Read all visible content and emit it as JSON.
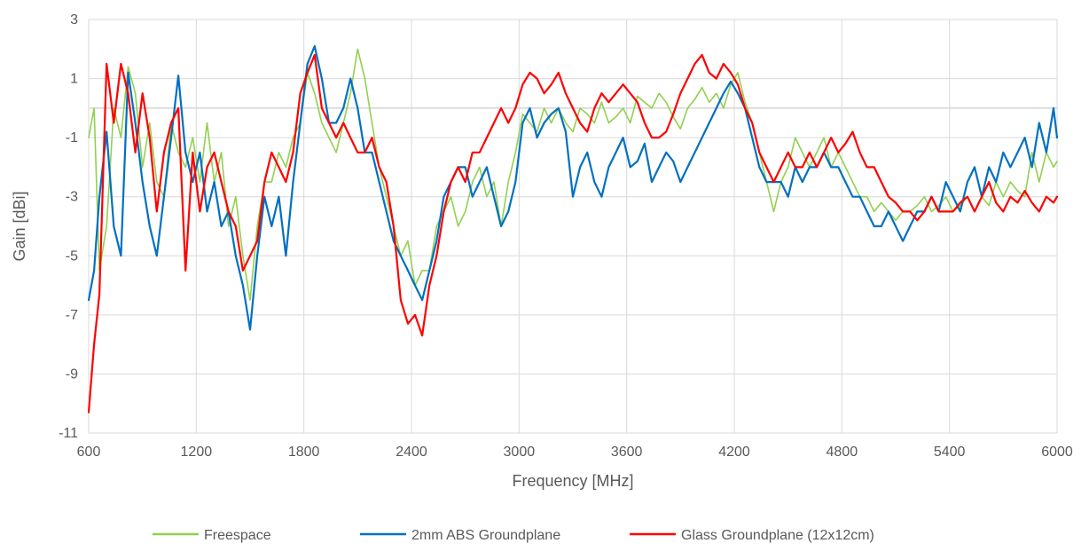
{
  "chart_data": {
    "type": "line",
    "title": "",
    "xlabel": "Frequency [MHz]",
    "ylabel": "Gain [dBi]",
    "xlim": [
      600,
      6000
    ],
    "ylim": [
      -11,
      3
    ],
    "xticks": [
      600,
      1200,
      1800,
      2400,
      3000,
      3600,
      4200,
      4800,
      5400,
      6000
    ],
    "yticks": [
      -11,
      -9,
      -7,
      -5,
      -3,
      -1,
      1,
      3
    ],
    "xtick_labels": [
      "600",
      "1200",
      "1800",
      "2400",
      "3000",
      "3600",
      "4200",
      "4800",
      "5400",
      "6000"
    ],
    "ytick_labels": [
      "-11",
      "-9",
      "-7",
      "-5",
      "-3",
      "-1",
      "1",
      "3"
    ],
    "grid": true,
    "legend": "bottom",
    "x": [
      600,
      630,
      660,
      700,
      740,
      780,
      820,
      860,
      900,
      940,
      980,
      1020,
      1060,
      1100,
      1140,
      1180,
      1220,
      1260,
      1300,
      1340,
      1380,
      1420,
      1460,
      1500,
      1540,
      1580,
      1620,
      1660,
      1700,
      1740,
      1780,
      1820,
      1860,
      1900,
      1940,
      1980,
      2020,
      2060,
      2100,
      2140,
      2180,
      2220,
      2260,
      2300,
      2340,
      2380,
      2420,
      2460,
      2500,
      2540,
      2580,
      2620,
      2660,
      2700,
      2740,
      2780,
      2820,
      2860,
      2900,
      2940,
      2980,
      3020,
      3060,
      3100,
      3140,
      3180,
      3220,
      3260,
      3300,
      3340,
      3380,
      3420,
      3460,
      3500,
      3540,
      3580,
      3620,
      3660,
      3700,
      3740,
      3780,
      3820,
      3860,
      3900,
      3940,
      3980,
      4020,
      4060,
      4100,
      4140,
      4180,
      4220,
      4260,
      4300,
      4340,
      4380,
      4420,
      4460,
      4500,
      4540,
      4580,
      4620,
      4660,
      4700,
      4740,
      4780,
      4820,
      4860,
      4900,
      4940,
      4980,
      5020,
      5060,
      5100,
      5140,
      5180,
      5220,
      5260,
      5300,
      5340,
      5380,
      5420,
      5460,
      5500,
      5540,
      5580,
      5620,
      5660,
      5700,
      5740,
      5780,
      5820,
      5860,
      5900,
      5940,
      5980,
      6000
    ],
    "series": [
      {
        "name": "Freespace",
        "color": "#92D050",
        "values": [
          -1.0,
          0.0,
          -5.5,
          -4.0,
          0.0,
          -1.0,
          1.4,
          0.5,
          -2.0,
          -0.5,
          -2.5,
          -3.0,
          -0.5,
          -1.5,
          -2.0,
          -1.0,
          -2.5,
          -0.5,
          -2.5,
          -1.5,
          -4.0,
          -3.0,
          -5.0,
          -6.5,
          -4.0,
          -2.5,
          -2.5,
          -1.5,
          -2.0,
          -1.0,
          -0.5,
          1.2,
          0.5,
          -0.5,
          -1.0,
          -1.5,
          -0.5,
          0.5,
          2.0,
          1.0,
          -0.5,
          -2.0,
          -3.0,
          -4.0,
          -5.0,
          -4.5,
          -6.0,
          -5.5,
          -5.5,
          -4.0,
          -3.5,
          -3.0,
          -4.0,
          -3.5,
          -2.5,
          -2.0,
          -3.0,
          -2.5,
          -4.0,
          -2.5,
          -1.5,
          -0.2,
          -0.5,
          -0.8,
          0.0,
          -0.5,
          0.0,
          -0.5,
          -0.8,
          0.0,
          -0.2,
          -0.5,
          0.2,
          -0.5,
          -0.3,
          0.0,
          -0.5,
          0.4,
          0.2,
          0.0,
          0.5,
          0.2,
          -0.3,
          -0.7,
          0.0,
          0.3,
          0.7,
          0.2,
          0.5,
          0.0,
          0.8,
          1.2,
          0.2,
          -0.5,
          -1.5,
          -2.5,
          -3.5,
          -2.5,
          -2.0,
          -1.0,
          -1.5,
          -2.0,
          -1.5,
          -1.0,
          -2.0,
          -1.5,
          -2.0,
          -2.5,
          -3.0,
          -3.0,
          -3.5,
          -3.2,
          -3.5,
          -3.8,
          -3.5,
          -3.5,
          -3.3,
          -3.0,
          -3.5,
          -3.3,
          -3.0,
          -3.5,
          -3.3,
          -3.0,
          -3.5,
          -3.0,
          -3.3,
          -2.5,
          -3.0,
          -2.5,
          -2.8,
          -3.0,
          -1.5,
          -2.5,
          -1.5,
          -2.0,
          -1.8
        ]
      },
      {
        "name": "2mm ABS Groundplane",
        "color": "#0070C0",
        "values": [
          -6.5,
          -5.5,
          -3.0,
          -0.8,
          -4.0,
          -5.0,
          1.2,
          -0.5,
          -2.5,
          -4.0,
          -5.0,
          -3.0,
          -1.0,
          1.1,
          -1.5,
          -2.5,
          -1.5,
          -3.5,
          -2.5,
          -4.0,
          -3.5,
          -5.0,
          -6.0,
          -7.5,
          -5.0,
          -3.0,
          -4.0,
          -3.0,
          -5.0,
          -2.5,
          -0.5,
          1.5,
          2.1,
          1.0,
          -0.5,
          -0.5,
          0.0,
          1.0,
          0.0,
          -1.5,
          -1.5,
          -2.5,
          -3.5,
          -4.5,
          -5.0,
          -5.5,
          -6.0,
          -6.5,
          -5.5,
          -4.5,
          -3.0,
          -2.5,
          -2.0,
          -2.0,
          -3.0,
          -2.5,
          -2.0,
          -3.0,
          -4.0,
          -3.5,
          -2.5,
          -0.5,
          0.0,
          -1.0,
          -0.5,
          -0.2,
          0.0,
          -0.8,
          -3.0,
          -2.0,
          -1.5,
          -2.5,
          -3.0,
          -2.0,
          -1.5,
          -1.0,
          -2.0,
          -1.8,
          -1.2,
          -2.5,
          -2.0,
          -1.5,
          -1.8,
          -2.5,
          -2.0,
          -1.5,
          -1.0,
          -0.5,
          0.0,
          0.5,
          0.9,
          0.5,
          0.0,
          -1.0,
          -2.0,
          -2.5,
          -2.5,
          -2.5,
          -3.0,
          -2.0,
          -2.5,
          -2.0,
          -2.0,
          -1.5,
          -2.0,
          -2.0,
          -2.5,
          -3.0,
          -3.0,
          -3.5,
          -4.0,
          -4.0,
          -3.5,
          -4.0,
          -4.5,
          -4.0,
          -3.5,
          -3.5,
          -3.0,
          -3.5,
          -2.5,
          -3.0,
          -3.5,
          -2.5,
          -2.0,
          -3.0,
          -2.0,
          -2.5,
          -1.5,
          -2.0,
          -1.5,
          -1.0,
          -2.0,
          -0.5,
          -1.5,
          0.0,
          -1.0
        ]
      },
      {
        "name": "Glass Groundplane (12x12cm)",
        "color": "#FF0000",
        "values": [
          -10.3,
          -8.0,
          -6.3,
          1.5,
          -0.5,
          1.5,
          0.5,
          -1.5,
          0.5,
          -1.0,
          -3.5,
          -1.5,
          -0.5,
          0.0,
          -5.5,
          -1.5,
          -3.5,
          -2.0,
          -1.5,
          -2.5,
          -3.5,
          -4.0,
          -5.5,
          -5.0,
          -4.5,
          -2.5,
          -1.5,
          -2.0,
          -2.5,
          -1.5,
          0.5,
          1.2,
          1.8,
          0.0,
          -0.5,
          -1.0,
          -0.5,
          -1.0,
          -1.5,
          -1.5,
          -1.0,
          -2.0,
          -2.5,
          -4.0,
          -6.5,
          -7.3,
          -7.0,
          -7.7,
          -6.0,
          -5.0,
          -3.5,
          -2.5,
          -2.0,
          -2.5,
          -1.5,
          -1.5,
          -1.0,
          -0.5,
          0.0,
          -0.5,
          0.0,
          0.8,
          1.2,
          1.0,
          0.5,
          0.8,
          1.2,
          0.5,
          0.0,
          -0.5,
          -0.8,
          0.0,
          0.5,
          0.2,
          0.5,
          0.8,
          0.5,
          0.2,
          -0.5,
          -1.0,
          -1.0,
          -0.8,
          -0.2,
          0.5,
          1.0,
          1.5,
          1.8,
          1.2,
          1.0,
          1.5,
          1.2,
          0.8,
          0.0,
          -0.5,
          -1.5,
          -2.0,
          -2.5,
          -2.0,
          -1.5,
          -2.0,
          -2.0,
          -1.5,
          -2.0,
          -1.5,
          -1.0,
          -1.5,
          -1.2,
          -0.8,
          -1.5,
          -2.0,
          -2.0,
          -2.5,
          -3.0,
          -3.2,
          -3.5,
          -3.5,
          -3.8,
          -3.5,
          -3.0,
          -3.5,
          -3.5,
          -3.5,
          -3.2,
          -3.0,
          -3.5,
          -3.0,
          -2.5,
          -3.2,
          -3.5,
          -3.0,
          -3.2,
          -2.8,
          -3.2,
          -3.5,
          -3.0,
          -3.2,
          -3.0
        ]
      }
    ]
  }
}
